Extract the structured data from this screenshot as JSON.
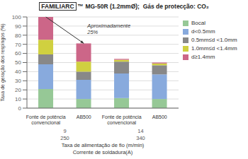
{
  "chart_data": {
    "type": "bar",
    "stacked": true,
    "title": "FAMILIARC",
    "subtitle": "™ MG-50R (1.2mmØ);  Gás de protecção: CO₂",
    "ylabel": "Taxa de geração dos respingos (%)",
    "categories": [
      "Fonte de potência\nconvencional",
      "AB500",
      "Fonte de potência\nconvencional",
      "AB500"
    ],
    "x_groups": [
      {
        "label": "Taxa de alimentação de fio (m/min)",
        "categories": [
          "9",
          "14"
        ]
      },
      {
        "label": "Corrente de soldadura(A)",
        "categories": [
          "250",
          "340"
        ]
      }
    ],
    "series": [
      {
        "name": "Bocal",
        "color": "#96c896",
        "values": [
          21,
          10,
          11,
          10
        ]
      },
      {
        "name": "d<0.5mm",
        "color": "#88aadd",
        "values": [
          27,
          21,
          27,
          27
        ]
      },
      {
        "name": "0.5mm≤d <1.0mm",
        "color": "#888888",
        "values": [
          11,
          9,
          13,
          10
        ]
      },
      {
        "name": "1.0mm≤d <1.4mm",
        "color": "#d0d040",
        "values": [
          16,
          11,
          2,
          2
        ]
      },
      {
        "name": "d≥1.4mm",
        "color": "#cc6688",
        "values": [
          25,
          20,
          1,
          1
        ]
      }
    ],
    "ylim": [
      0,
      100
    ],
    "yticks": [
      0,
      10,
      20,
      30,
      40,
      50,
      60,
      70,
      80,
      90,
      100
    ],
    "grid": true,
    "legend": "right",
    "annotations": [
      {
        "text": "Aproximadamente\n25%"
      }
    ]
  }
}
